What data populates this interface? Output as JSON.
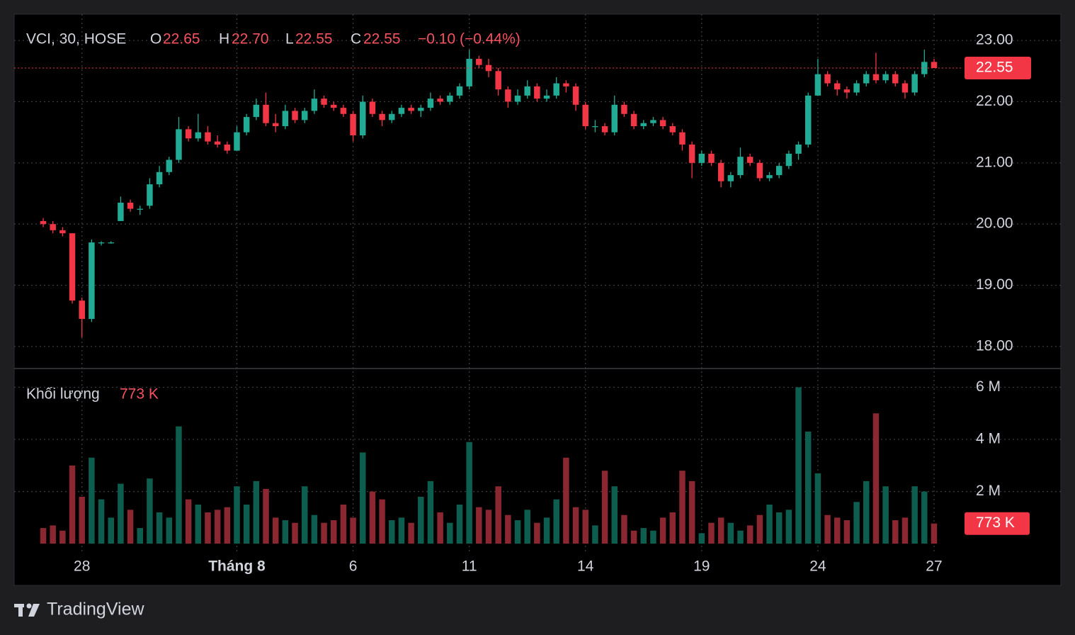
{
  "chart_data": {
    "type": "candlestick",
    "legend": {
      "symbol": "VCI, 30, HOSE",
      "o_prefix": "O",
      "open": "22.65",
      "h_prefix": "H",
      "high": "22.70",
      "l_prefix": "L",
      "low": "22.55",
      "c_prefix": "C",
      "close": "22.55",
      "change": "−0.10 (−0.44%)"
    },
    "up_color": "#22ab94",
    "down_color": "#f23645",
    "volume_up_color": "#0e5e50",
    "volume_down_color": "#8a2731",
    "ylim": [
      17.64,
      23.43
    ],
    "yticks": [
      {
        "value": 18,
        "label": "18.00"
      },
      {
        "value": 19,
        "label": "19.00"
      },
      {
        "value": 20,
        "label": "20.00"
      },
      {
        "value": 21,
        "label": "21.00"
      },
      {
        "value": 22,
        "label": "22.00"
      },
      {
        "value": 23,
        "label": "23.00"
      }
    ],
    "grid": true,
    "categories": [
      null,
      null,
      null,
      null,
      "28",
      null,
      null,
      null,
      null,
      null,
      null,
      null,
      null,
      null,
      null,
      null,
      null,
      null,
      null,
      null,
      "Tháng 8",
      null,
      null,
      null,
      null,
      null,
      null,
      null,
      null,
      null,
      null,
      null,
      "6",
      null,
      null,
      null,
      null,
      null,
      null,
      null,
      null,
      null,
      null,
      null,
      "11",
      null,
      null,
      null,
      null,
      null,
      null,
      null,
      null,
      null,
      null,
      null,
      "14",
      null,
      null,
      null,
      null,
      null,
      null,
      null,
      null,
      null,
      null,
      null,
      "19",
      null,
      null,
      null,
      null,
      null,
      null,
      null,
      null,
      null,
      null,
      null,
      "24",
      null,
      null,
      null,
      null,
      null,
      null,
      null,
      null,
      null,
      null,
      null,
      "27"
    ],
    "ohlc": [
      [
        20.05,
        20.1,
        19.95,
        20.0
      ],
      [
        20.0,
        20.05,
        19.85,
        19.9
      ],
      [
        19.9,
        19.95,
        19.8,
        19.85
      ],
      [
        19.85,
        19.85,
        18.7,
        18.75
      ],
      [
        18.75,
        18.8,
        18.15,
        18.45
      ],
      [
        18.45,
        19.75,
        18.4,
        19.7
      ],
      [
        19.7,
        19.72,
        19.65,
        19.7
      ],
      [
        19.7,
        19.72,
        19.68,
        19.7
      ],
      [
        20.05,
        20.45,
        20.05,
        20.35
      ],
      [
        20.35,
        20.4,
        20.2,
        20.25
      ],
      [
        20.25,
        20.3,
        20.15,
        20.25
      ],
      [
        20.3,
        20.75,
        20.25,
        20.65
      ],
      [
        20.65,
        20.95,
        20.6,
        20.85
      ],
      [
        20.85,
        21.1,
        20.8,
        21.05
      ],
      [
        21.05,
        21.75,
        21.0,
        21.55
      ],
      [
        21.55,
        21.6,
        21.35,
        21.4
      ],
      [
        21.4,
        21.8,
        21.35,
        21.5
      ],
      [
        21.5,
        21.6,
        21.3,
        21.35
      ],
      [
        21.35,
        21.45,
        21.25,
        21.3
      ],
      [
        21.3,
        21.35,
        21.15,
        21.2
      ],
      [
        21.2,
        21.6,
        21.2,
        21.5
      ],
      [
        21.5,
        21.8,
        21.45,
        21.75
      ],
      [
        21.75,
        22.05,
        21.7,
        21.95
      ],
      [
        21.95,
        22.15,
        21.6,
        21.65
      ],
      [
        21.65,
        21.8,
        21.5,
        21.6
      ],
      [
        21.6,
        21.95,
        21.55,
        21.85
      ],
      [
        21.85,
        21.9,
        21.65,
        21.7
      ],
      [
        21.7,
        21.9,
        21.65,
        21.85
      ],
      [
        21.85,
        22.2,
        21.8,
        22.05
      ],
      [
        22.05,
        22.1,
        21.9,
        21.95
      ],
      [
        21.95,
        22.0,
        21.85,
        21.9
      ],
      [
        21.9,
        21.95,
        21.75,
        21.8
      ],
      [
        21.8,
        21.85,
        21.35,
        21.45
      ],
      [
        21.45,
        22.1,
        21.4,
        22.0
      ],
      [
        22.0,
        22.05,
        21.75,
        21.8
      ],
      [
        21.8,
        21.85,
        21.6,
        21.7
      ],
      [
        21.7,
        21.85,
        21.65,
        21.8
      ],
      [
        21.8,
        21.95,
        21.75,
        21.9
      ],
      [
        21.9,
        21.95,
        21.8,
        21.85
      ],
      [
        21.85,
        21.95,
        21.75,
        21.9
      ],
      [
        21.9,
        22.15,
        21.85,
        22.05
      ],
      [
        22.05,
        22.1,
        21.95,
        22.0
      ],
      [
        22.0,
        22.15,
        21.95,
        22.1
      ],
      [
        22.1,
        22.3,
        22.05,
        22.25
      ],
      [
        22.25,
        22.85,
        22.2,
        22.7
      ],
      [
        22.7,
        22.75,
        22.55,
        22.6
      ],
      [
        22.6,
        22.7,
        22.4,
        22.5
      ],
      [
        22.5,
        22.55,
        22.1,
        22.2
      ],
      [
        22.2,
        22.25,
        21.9,
        22.0
      ],
      [
        22.0,
        22.2,
        21.95,
        22.1
      ],
      [
        22.1,
        22.35,
        22.05,
        22.25
      ],
      [
        22.25,
        22.3,
        22.0,
        22.05
      ],
      [
        22.05,
        22.2,
        22.0,
        22.1
      ],
      [
        22.1,
        22.4,
        22.05,
        22.3
      ],
      [
        22.3,
        22.35,
        22.15,
        22.25
      ],
      [
        22.25,
        22.3,
        21.85,
        21.95
      ],
      [
        21.95,
        22.0,
        21.55,
        21.6
      ],
      [
        21.6,
        21.7,
        21.5,
        21.6
      ],
      [
        21.6,
        21.65,
        21.45,
        21.5
      ],
      [
        21.5,
        22.1,
        21.45,
        21.95
      ],
      [
        21.95,
        22.0,
        21.75,
        21.8
      ],
      [
        21.8,
        21.85,
        21.55,
        21.6
      ],
      [
        21.6,
        21.7,
        21.55,
        21.65
      ],
      [
        21.65,
        21.75,
        21.6,
        21.7
      ],
      [
        21.7,
        21.75,
        21.55,
        21.6
      ],
      [
        21.6,
        21.65,
        21.45,
        21.5
      ],
      [
        21.5,
        21.55,
        21.2,
        21.3
      ],
      [
        21.3,
        21.35,
        20.75,
        21.0
      ],
      [
        21.0,
        21.2,
        20.95,
        21.15
      ],
      [
        21.15,
        21.2,
        20.95,
        21.0
      ],
      [
        21.0,
        21.05,
        20.6,
        20.7
      ],
      [
        20.7,
        20.85,
        20.6,
        20.8
      ],
      [
        20.8,
        21.25,
        20.75,
        21.1
      ],
      [
        21.1,
        21.15,
        20.95,
        21.0
      ],
      [
        21.0,
        21.05,
        20.7,
        20.75
      ],
      [
        20.75,
        20.85,
        20.7,
        20.8
      ],
      [
        20.8,
        21.0,
        20.75,
        20.95
      ],
      [
        20.95,
        21.2,
        20.9,
        21.15
      ],
      [
        21.15,
        21.35,
        21.05,
        21.3
      ],
      [
        21.3,
        22.15,
        21.25,
        22.1
      ],
      [
        22.1,
        22.7,
        22.1,
        22.45
      ],
      [
        22.45,
        22.5,
        22.25,
        22.3
      ],
      [
        22.3,
        22.35,
        22.1,
        22.2
      ],
      [
        22.2,
        22.25,
        22.05,
        22.15
      ],
      [
        22.15,
        22.35,
        22.1,
        22.3
      ],
      [
        22.3,
        22.5,
        22.25,
        22.45
      ],
      [
        22.45,
        22.8,
        22.3,
        22.35
      ],
      [
        22.35,
        22.5,
        22.3,
        22.45
      ],
      [
        22.45,
        22.5,
        22.25,
        22.3
      ],
      [
        22.3,
        22.35,
        22.05,
        22.15
      ],
      [
        22.15,
        22.5,
        22.1,
        22.45
      ],
      [
        22.45,
        22.85,
        22.4,
        22.65
      ],
      [
        22.65,
        22.7,
        22.55,
        22.55
      ]
    ],
    "volume": {
      "name": "Khối lượng",
      "values": [
        600000,
        700000,
        500000,
        3000000,
        1800000,
        3300000,
        1700000,
        1000000,
        2300000,
        1300000,
        600000,
        2500000,
        1200000,
        1000000,
        4500000,
        1700000,
        1500000,
        1200000,
        1300000,
        1400000,
        2200000,
        1500000,
        2400000,
        2100000,
        1000000,
        900000,
        800000,
        2200000,
        1100000,
        800000,
        900000,
        1500000,
        1000000,
        3500000,
        2000000,
        1700000,
        900000,
        1000000,
        800000,
        1800000,
        2400000,
        1200000,
        800000,
        1500000,
        3900000,
        1400000,
        1300000,
        2200000,
        1100000,
        900000,
        1300000,
        800000,
        1000000,
        1700000,
        3300000,
        1400000,
        1300000,
        700000,
        2800000,
        2200000,
        1100000,
        500000,
        600000,
        500000,
        1000000,
        1200000,
        2800000,
        2400000,
        400000,
        800000,
        1000000,
        800000,
        500000,
        700000,
        1100000,
        1500000,
        1200000,
        1300000,
        6000000,
        4300000,
        2700000,
        1100000,
        1000000,
        900000,
        1600000,
        2400000,
        5000000,
        2200000,
        900000,
        1000000,
        2200000,
        2000000,
        773000
      ],
      "value_labels": [
        null,
        null,
        null,
        null,
        null,
        null,
        null,
        null,
        null,
        null,
        null,
        null,
        null,
        null,
        null,
        null,
        null,
        null,
        null,
        null,
        null,
        null,
        null,
        null,
        null,
        null,
        null,
        null,
        null,
        null,
        null,
        null,
        null,
        null,
        null,
        null,
        null,
        null,
        null,
        null,
        null,
        null,
        null,
        null,
        null,
        null,
        null,
        null,
        null,
        null,
        null,
        null,
        null,
        null,
        null,
        null,
        null,
        null,
        null,
        null,
        null,
        null,
        null,
        null,
        null,
        null,
        null,
        null,
        null,
        null,
        null,
        null,
        null,
        null,
        null,
        null,
        null,
        null,
        null,
        null,
        null,
        null,
        null,
        null,
        null,
        null,
        null,
        null,
        null,
        null,
        null,
        null,
        "773 K"
      ],
      "ylim": [
        -350000,
        6720000
      ],
      "yticks": [
        {
          "value": 2000000,
          "label": "2 M"
        },
        {
          "value": 4000000,
          "label": "4 M"
        },
        {
          "value": 6000000,
          "label": "6 M"
        }
      ]
    },
    "brand": "TradingView"
  }
}
